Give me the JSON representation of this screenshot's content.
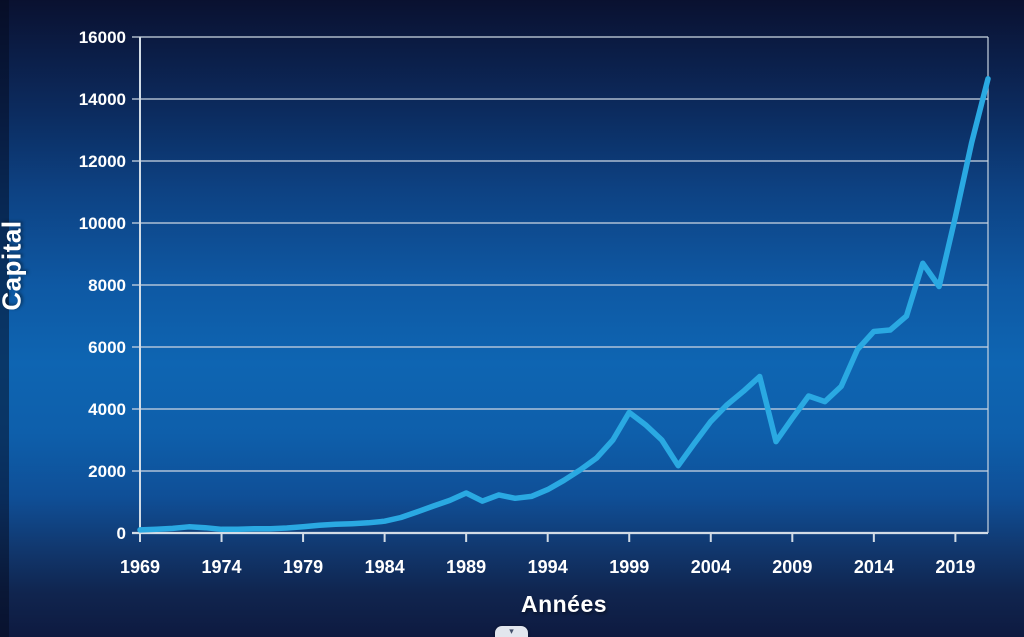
{
  "colors": {
    "line": "#2aa9e2",
    "gridline": "#c9d5e2",
    "axis": "#d2dce6",
    "label_text": "#ffffff",
    "background_top": "#0a1130",
    "background_bright": "#0e65b2",
    "background_bottom": "#0e1a40",
    "handle_bg": "#e2e6ee"
  },
  "axis_titles": {
    "y": "Capital",
    "x": "Années"
  },
  "controls": {
    "slide_handle_chevron": "▾"
  },
  "chart_data": {
    "type": "line",
    "title": "",
    "xlabel": "Années",
    "ylabel": "Capital",
    "xlim": [
      1969,
      2021
    ],
    "ylim": [
      0,
      16000
    ],
    "x_ticks": [
      1969,
      1974,
      1979,
      1984,
      1989,
      1994,
      1999,
      2004,
      2009,
      2014,
      2019
    ],
    "y_ticks": [
      0,
      2000,
      4000,
      6000,
      8000,
      10000,
      12000,
      14000,
      16000
    ],
    "grid": true,
    "legend": false,
    "series": [
      {
        "name": "Capital",
        "x": [
          1969,
          1970,
          1971,
          1972,
          1973,
          1974,
          1975,
          1976,
          1977,
          1978,
          1979,
          1980,
          1981,
          1982,
          1983,
          1984,
          1985,
          1986,
          1987,
          1988,
          1989,
          1990,
          1991,
          1992,
          1993,
          1994,
          1995,
          1996,
          1997,
          1998,
          1999,
          2000,
          2001,
          2002,
          2003,
          2004,
          2005,
          2006,
          2007,
          2008,
          2009,
          2010,
          2011,
          2012,
          2013,
          2014,
          2015,
          2016,
          2017,
          2018,
          2019,
          2020,
          2021
        ],
        "values": [
          100,
          120,
          150,
          200,
          170,
          120,
          120,
          140,
          140,
          160,
          200,
          250,
          280,
          300,
          330,
          380,
          500,
          680,
          870,
          1050,
          1290,
          1030,
          1230,
          1120,
          1180,
          1400,
          1700,
          2040,
          2420,
          3000,
          3890,
          3490,
          3000,
          2170,
          2900,
          3600,
          4140,
          4570,
          5050,
          2950,
          3700,
          4420,
          4240,
          4730,
          5920,
          6500,
          6550,
          7000,
          8700,
          7950,
          10200,
          12600,
          14650
        ]
      }
    ]
  }
}
